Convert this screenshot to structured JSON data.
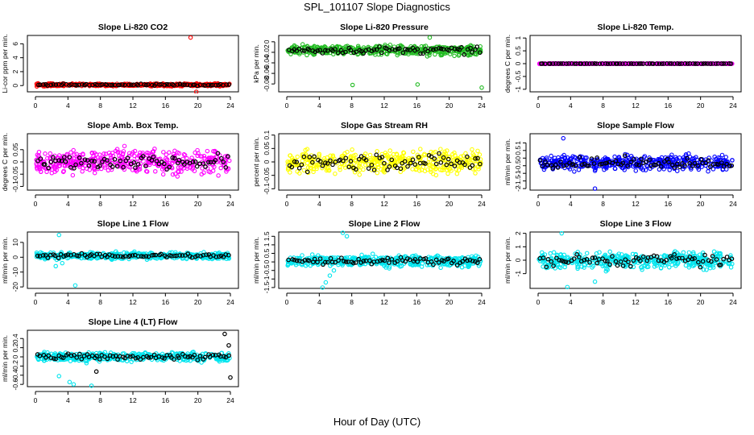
{
  "figure": {
    "title": "SPL_101107  Slope Diagnostics",
    "xlabel": "Hour of Day (UTC)"
  },
  "chart_data": [
    {
      "type": "scatter",
      "title": "Slope Li-820 CO2",
      "ylabel": "Li-cor ppm per min.",
      "xlim": [
        0,
        24
      ],
      "ylim": [
        -0.9,
        7.2
      ],
      "xticks": [
        0,
        4,
        8,
        12,
        16,
        20,
        24
      ],
      "yticks": [
        0,
        2,
        4,
        6
      ],
      "grid": false,
      "base": 0.1,
      "spread": 0.18,
      "series": [
        {
          "color": "#ff0000",
          "outliers": [
            [
              19.1,
              6.9
            ],
            [
              19.8,
              -0.9
            ]
          ]
        },
        {
          "color": "#000000",
          "outliers": []
        }
      ]
    },
    {
      "type": "scatter",
      "title": "Slope Li-820 Pressure",
      "ylabel": "kPa per min.",
      "xlim": [
        0,
        24
      ],
      "ylim": [
        -0.095,
        0.012
      ],
      "xticks": [
        0,
        4,
        8,
        12,
        16,
        20,
        24
      ],
      "yticks": [
        -0.08,
        -0.06,
        -0.04,
        -0.02,
        0
      ],
      "grid": false,
      "base": -0.016,
      "spread": 0.009,
      "series": [
        {
          "color": "#22bb22",
          "outliers": [
            [
              8.1,
              -0.082
            ],
            [
              16.1,
              -0.081
            ],
            [
              24,
              -0.087
            ],
            [
              17.6,
              0.008
            ]
          ]
        },
        {
          "color": "#000000",
          "outliers": []
        }
      ]
    },
    {
      "type": "scatter",
      "title": "Slope Li-820 Temp.",
      "ylabel": "degrees C per min.",
      "xlim": [
        0,
        24
      ],
      "ylim": [
        -1.1,
        1.1
      ],
      "xticks": [
        0,
        4,
        8,
        12,
        16,
        20,
        24
      ],
      "yticks": [
        -1,
        -0.5,
        0,
        0.5,
        1
      ],
      "grid": false,
      "base": 0,
      "spread": 0.008,
      "series": [
        {
          "color": "#ff00ff",
          "outliers": []
        },
        {
          "color": "#000000",
          "outliers": []
        }
      ]
    },
    {
      "type": "scatter",
      "title": "Slope Amb. Box Temp.",
      "ylabel": "degrees C per min.",
      "xlim": [
        0,
        24
      ],
      "ylim": [
        -0.115,
        0.115
      ],
      "xticks": [
        0,
        4,
        8,
        12,
        16,
        20,
        24
      ],
      "yticks": [
        -0.1,
        -0.05,
        0,
        0.05
      ],
      "grid": false,
      "base": 0,
      "spread": 0.045,
      "series": [
        {
          "color": "#ff00ff",
          "outliers": []
        },
        {
          "color": "#000000",
          "outliers": []
        }
      ]
    },
    {
      "type": "scatter",
      "title": "Slope Gas Stream RH",
      "ylabel": "percent per min.",
      "xlim": [
        0,
        24
      ],
      "ylim": [
        -0.105,
        0.105
      ],
      "xticks": [
        0,
        4,
        8,
        12,
        16,
        20,
        24
      ],
      "yticks": [
        -0.1,
        -0.05,
        0,
        0.05,
        0.1
      ],
      "grid": false,
      "base": 0,
      "spread": 0.04,
      "series": [
        {
          "color": "#ffff00",
          "outliers": []
        },
        {
          "color": "#000000",
          "outliers": []
        }
      ]
    },
    {
      "type": "scatter",
      "title": "Slope Sample Flow",
      "ylabel": "ml/min per min.",
      "xlim": [
        0,
        24
      ],
      "ylim": [
        -2.1,
        1.6
      ],
      "xticks": [
        0,
        4,
        8,
        12,
        16,
        20,
        24
      ],
      "yticks": [
        -2,
        -1.5,
        -1,
        -0.5,
        0,
        0.5,
        1
      ],
      "grid": false,
      "base": -0.3,
      "spread": 0.45,
      "series": [
        {
          "color": "#0000ff",
          "outliers": [
            [
              3.1,
              1.3
            ],
            [
              7.0,
              -2.0
            ]
          ]
        },
        {
          "color": "#000000",
          "outliers": []
        }
      ]
    },
    {
      "type": "scatter",
      "title": "Slope Line 1 Flow",
      "ylabel": "ml/min per min.",
      "xlim": [
        0,
        24
      ],
      "ylim": [
        -21,
        17
      ],
      "xticks": [
        0,
        4,
        8,
        12,
        16,
        20,
        24
      ],
      "yticks": [
        -20,
        -10,
        0,
        10
      ],
      "grid": false,
      "base": 1,
      "spread": 2,
      "series": [
        {
          "color": "#00e5ee",
          "outliers": [
            [
              2.9,
              15
            ],
            [
              4.9,
              -19
            ],
            [
              2.5,
              -6
            ],
            [
              3.3,
              -4
            ]
          ]
        },
        {
          "color": "#000000",
          "outliers": []
        }
      ]
    },
    {
      "type": "scatter",
      "title": "Slope Line 2 Flow",
      "ylabel": "ml/min per min.",
      "xlim": [
        0,
        24
      ],
      "ylim": [
        -1.55,
        1.75
      ],
      "xticks": [
        0,
        4,
        8,
        12,
        16,
        20,
        24
      ],
      "yticks": [
        -1.5,
        -1,
        -0.5,
        0,
        0.5,
        1,
        1.5
      ],
      "grid": false,
      "base": 0.05,
      "spread": 0.3,
      "series": [
        {
          "color": "#00e5ee",
          "outliers": [
            [
              4.4,
              -1.5
            ],
            [
              4.8,
              -1.2
            ],
            [
              5.3,
              -0.8
            ],
            [
              5.8,
              -0.5
            ],
            [
              6.9,
              1.7
            ],
            [
              7.4,
              1.5
            ]
          ]
        },
        {
          "color": "#000000",
          "outliers": []
        }
      ]
    },
    {
      "type": "scatter",
      "title": "Slope Line 3 Flow",
      "ylabel": "ml/min per min.",
      "xlim": [
        0,
        24
      ],
      "ylim": [
        -2.1,
        2.1
      ],
      "xticks": [
        0,
        4,
        8,
        12,
        16,
        20,
        24
      ],
      "yticks": [
        -1,
        0,
        1,
        2
      ],
      "grid": false,
      "base": 0,
      "spread": 0.6,
      "series": [
        {
          "color": "#00e5ee",
          "outliers": [
            [
              2.9,
              2.0
            ],
            [
              3.6,
              -2.0
            ],
            [
              7.0,
              -1.6
            ]
          ]
        },
        {
          "color": "#000000",
          "outliers": []
        }
      ]
    },
    {
      "type": "scatter",
      "title": "Slope Line 4 (LT) Flow",
      "ylabel": "ml/min per min.",
      "xlim": [
        0,
        24
      ],
      "ylim": [
        -0.65,
        0.58
      ],
      "xticks": [
        0,
        4,
        8,
        12,
        16,
        20,
        24
      ],
      "yticks": [
        -0.6,
        -0.4,
        -0.2,
        0,
        0.2,
        0.4
      ],
      "grid": false,
      "base": 0,
      "spread": 0.09,
      "series": [
        {
          "color": "#00e5ee",
          "outliers": [
            [
              4.7,
              -0.6
            ],
            [
              6.9,
              -0.63
            ],
            [
              2.9,
              -0.42
            ],
            [
              4.2,
              -0.55
            ]
          ]
        },
        {
          "color": "#000000",
          "outliers": [
            [
              23.3,
              0.5
            ],
            [
              24,
              -0.45
            ],
            [
              7.5,
              -0.32
            ],
            [
              23.8,
              0.25
            ]
          ]
        }
      ]
    }
  ]
}
